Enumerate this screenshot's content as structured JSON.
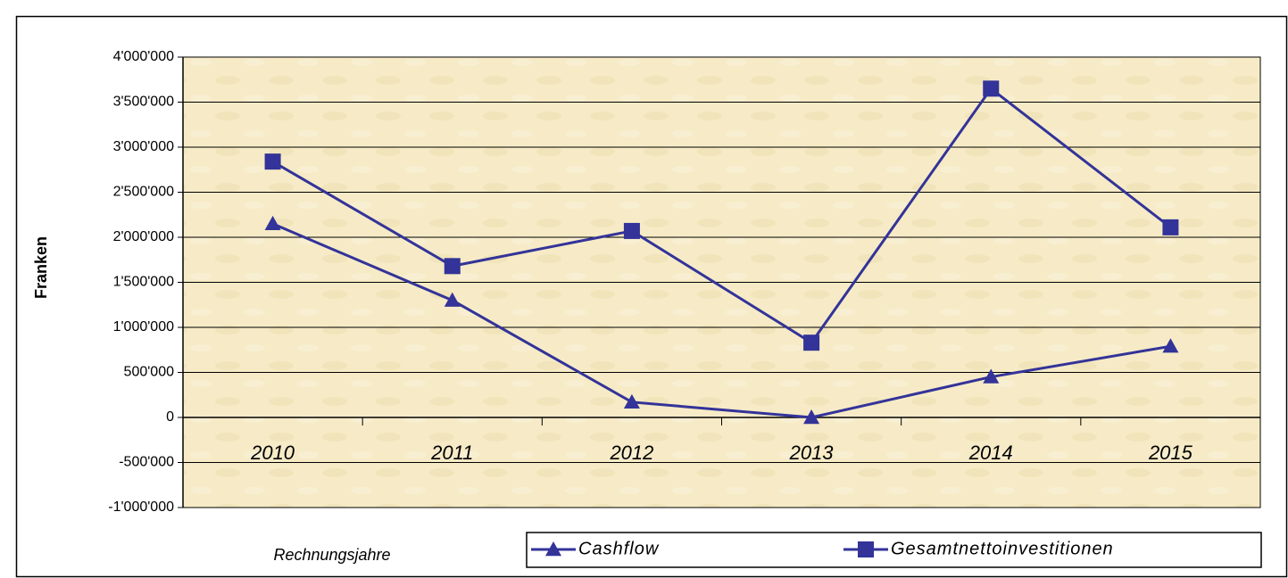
{
  "chart_data": {
    "type": "line",
    "x_label": "Rechnungsjahre",
    "y_label": "Franken",
    "categories": [
      "2010",
      "2011",
      "2012",
      "2013",
      "2014",
      "2015"
    ],
    "series": [
      {
        "name": "Cashflow",
        "color": "#333399",
        "marker": "triangle",
        "values": [
          2150000,
          1300000,
          170000,
          0,
          450000,
          790000
        ]
      },
      {
        "name": "Gesamtnettoinvestitionen",
        "color": "#333399",
        "marker": "square",
        "values": [
          2840000,
          1680000,
          2070000,
          830000,
          3650000,
          2110000
        ]
      }
    ],
    "ylim": [
      -1000000,
      4000000
    ],
    "yticks": [
      {
        "value": -1000000,
        "label": "-1'000'000"
      },
      {
        "value": -500000,
        "label": "-500'000"
      },
      0,
      {
        "value": 500000,
        "label": "500'000"
      },
      {
        "value": 1000000,
        "label": "1'000'000"
      },
      {
        "value": 1500000,
        "label": "1'500'000"
      },
      {
        "value": 2000000,
        "label": "2'000'000"
      },
      {
        "value": 2500000,
        "label": "2'500'000"
      },
      {
        "value": 3000000,
        "label": "3'000'000"
      },
      {
        "value": 3500000,
        "label": "3'500'000"
      },
      {
        "value": 4000000,
        "label": "4'000'000"
      }
    ],
    "grid": true,
    "legend": "bottom"
  }
}
